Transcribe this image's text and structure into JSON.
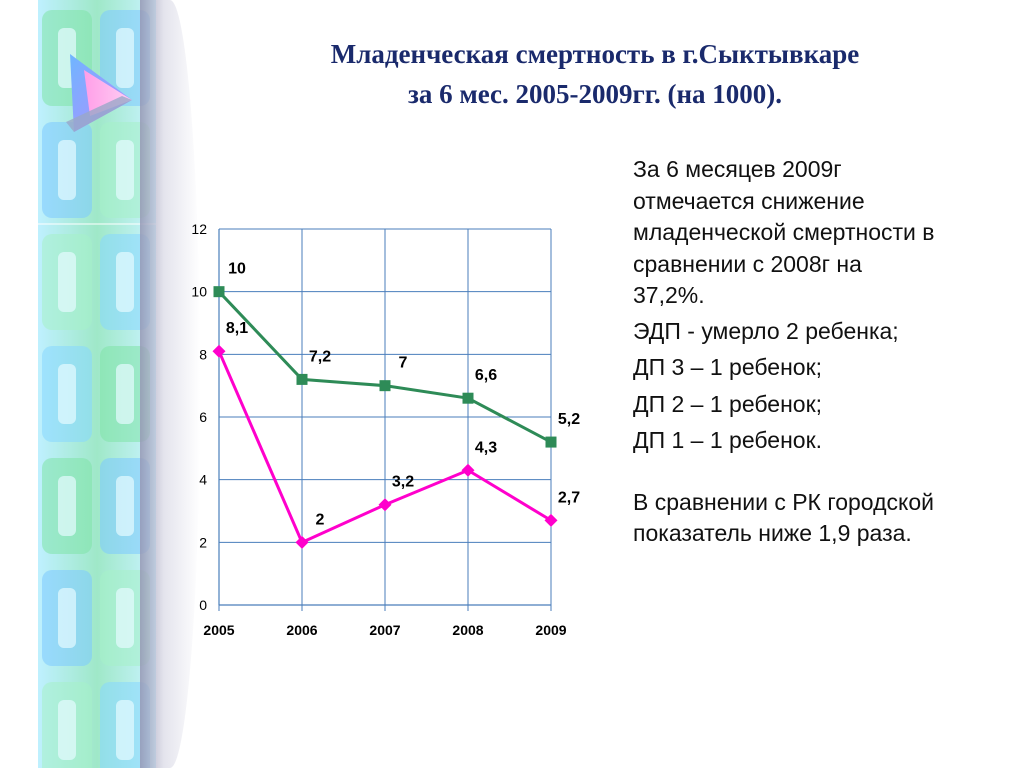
{
  "title": {
    "line1": "Младенческая смертность в г.Сыктывкаре",
    "line2": "за 6 мес. 2005-2009гг. (на 1000)."
  },
  "colors": {
    "title": "#1a2a6c",
    "series_green": "#2e8b57",
    "series_magenta": "#ff00cc",
    "grid": "#4a7ebb"
  },
  "text": {
    "para1": [
      "За 6 месяцев 2009г",
      "отмечается снижение",
      "младенческой смертности в",
      "сравнении с 2008г на",
      "37,2%."
    ],
    "items": [
      "ЭДП - умерло 2 ребенка;",
      "ДП 3 – 1 ребенок;",
      "ДП 2 – 1 ребенок;",
      "ДП 1 – 1 ребенок."
    ],
    "para2": [
      "В сравнении с РК городской",
      "показатель ниже 1,9 раза."
    ]
  },
  "chart_data": {
    "type": "line",
    "title": "",
    "xlabel": "",
    "ylabel": "",
    "categories": [
      "2005",
      "2006",
      "2007",
      "2008",
      "2009"
    ],
    "ylim": [
      0,
      12
    ],
    "yticks": [
      0,
      2,
      4,
      6,
      8,
      10,
      12
    ],
    "grid": true,
    "legend": "none",
    "series": [
      {
        "values": [
          10,
          7.2,
          7,
          6.6,
          5.2
        ],
        "labels": [
          "10",
          "7,2",
          "7",
          "6,6",
          "5,2"
        ],
        "color": "#2e8b57",
        "marker": "square"
      },
      {
        "values": [
          8.1,
          2,
          3.2,
          4.3,
          2.7
        ],
        "labels": [
          "8,1",
          "2",
          "3,2",
          "4,3",
          "2,7"
        ],
        "color": "#ff00cc",
        "marker": "diamond"
      }
    ]
  }
}
